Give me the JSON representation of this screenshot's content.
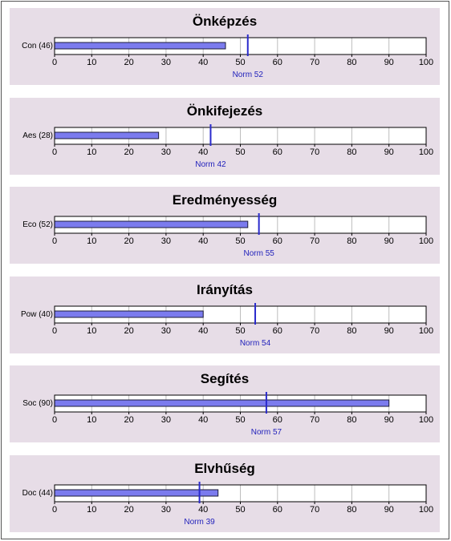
{
  "colors": {
    "panel_bg": "#e7dde7",
    "bar_fill": "#7b7bee",
    "bar_stroke": "#1c1c3a",
    "norm": "#2a2acc",
    "norm_label": "#2222bb",
    "grid": "#bdbdbd",
    "axis": "#000000"
  },
  "chart_data": [
    {
      "type": "bar",
      "orientation": "horizontal",
      "title": "Önképzés",
      "categories": [
        "Con (46)"
      ],
      "values": [
        46
      ],
      "norm": 52,
      "norm_label": "Norm 52",
      "xlim": [
        0,
        100
      ],
      "xticks": [
        0,
        10,
        20,
        30,
        40,
        50,
        60,
        70,
        80,
        90,
        100
      ],
      "xtick_labels": [
        "0",
        "10",
        "20",
        "30",
        "40",
        "50",
        "60",
        "70",
        "80",
        "90",
        "100"
      ],
      "grid": true
    },
    {
      "type": "bar",
      "orientation": "horizontal",
      "title": "Önkifejezés",
      "categories": [
        "Aes (28)"
      ],
      "values": [
        28
      ],
      "norm": 42,
      "norm_label": "Norm 42",
      "xlim": [
        0,
        100
      ],
      "xticks": [
        0,
        10,
        20,
        30,
        40,
        50,
        60,
        70,
        80,
        90,
        100
      ],
      "xtick_labels": [
        "0",
        "10",
        "20",
        "30",
        "40",
        "50",
        "60",
        "70",
        "80",
        "90",
        "100"
      ],
      "grid": true
    },
    {
      "type": "bar",
      "orientation": "horizontal",
      "title": "Eredményesség",
      "categories": [
        "Eco (52)"
      ],
      "values": [
        52
      ],
      "norm": 55,
      "norm_label": "Norm 55",
      "xlim": [
        0,
        100
      ],
      "xticks": [
        0,
        10,
        20,
        30,
        40,
        50,
        60,
        70,
        80,
        90,
        100
      ],
      "xtick_labels": [
        "0",
        "10",
        "20",
        "30",
        "40",
        "50",
        "60",
        "70",
        "80",
        "90",
        "100"
      ],
      "grid": true
    },
    {
      "type": "bar",
      "orientation": "horizontal",
      "title": "Irányítás",
      "categories": [
        "Pow (40)"
      ],
      "values": [
        40
      ],
      "norm": 54,
      "norm_label": "Norm 54",
      "xlim": [
        0,
        100
      ],
      "xticks": [
        0,
        10,
        20,
        30,
        40,
        50,
        60,
        70,
        80,
        90,
        100
      ],
      "xtick_labels": [
        "0",
        "10",
        "20",
        "30",
        "40",
        "50",
        "60",
        "70",
        "80",
        "90",
        "100"
      ],
      "grid": true
    },
    {
      "type": "bar",
      "orientation": "horizontal",
      "title": "Segítés",
      "categories": [
        "Soc (90)"
      ],
      "values": [
        90
      ],
      "norm": 57,
      "norm_label": "Norm 57",
      "xlim": [
        0,
        100
      ],
      "xticks": [
        0,
        10,
        20,
        30,
        40,
        50,
        60,
        70,
        80,
        90,
        100
      ],
      "xtick_labels": [
        "0",
        "10",
        "20",
        "30",
        "40",
        "50",
        "60",
        "70",
        "80",
        "90",
        "100"
      ],
      "grid": true
    },
    {
      "type": "bar",
      "orientation": "horizontal",
      "title": "Elvhűség",
      "categories": [
        "Doc (44)"
      ],
      "values": [
        44
      ],
      "norm": 39,
      "norm_label": "Norm 39",
      "xlim": [
        0,
        100
      ],
      "xticks": [
        0,
        10,
        20,
        30,
        40,
        50,
        60,
        70,
        80,
        90,
        100
      ],
      "xtick_labels": [
        "0",
        "10",
        "20",
        "30",
        "40",
        "50",
        "60",
        "70",
        "80",
        "90",
        "100"
      ],
      "grid": true
    }
  ]
}
